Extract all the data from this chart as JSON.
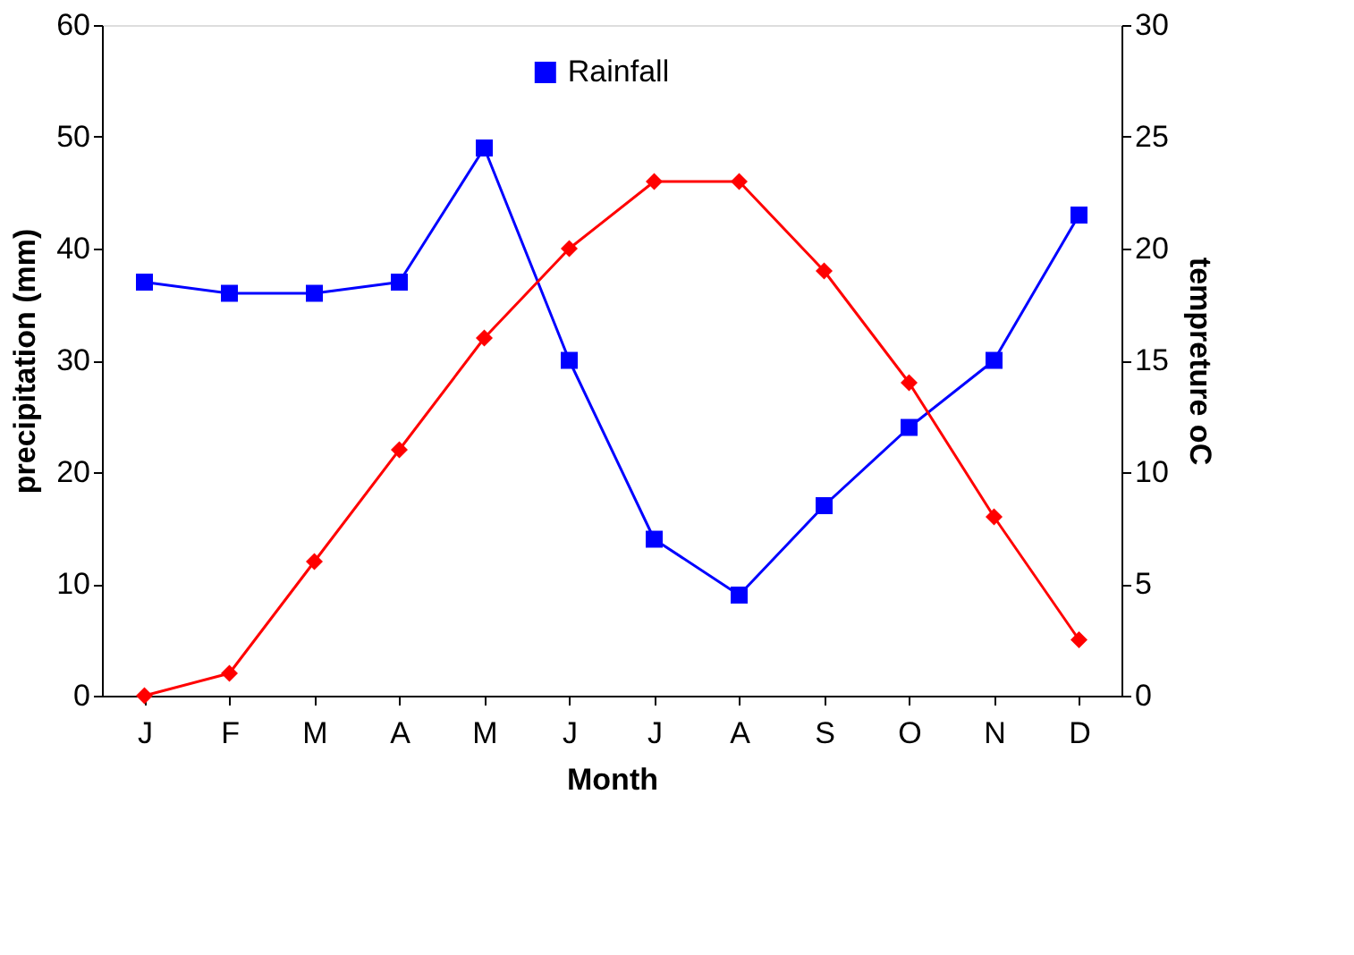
{
  "chart_data": {
    "type": "line",
    "xlabel": "Month",
    "ylabel": "precipitation (mm)",
    "y2label": "tempreture oC",
    "categories": [
      "J",
      "F",
      "M",
      "A",
      "M",
      "J",
      "J",
      "A",
      "S",
      "O",
      "N",
      "D"
    ],
    "series": [
      {
        "name": "Rainfall",
        "color": "#0000ff",
        "marker": "square",
        "values": [
          37,
          36,
          36,
          37,
          49,
          30,
          14,
          9,
          17,
          24,
          30,
          43
        ]
      },
      {
        "color": "#ff0000",
        "marker": "diamond",
        "axis": "y2",
        "values": [
          0,
          1,
          6,
          11,
          16,
          20,
          23,
          23,
          19,
          14,
          8,
          2.5
        ]
      }
    ],
    "ylim": [
      0,
      60
    ],
    "yticks": [
      0,
      10,
      20,
      30,
      40,
      50,
      60
    ],
    "y2lim": [
      0,
      30
    ],
    "y2ticks": [
      0,
      5,
      10,
      15,
      20,
      25,
      30
    ],
    "legend": "top",
    "grid": false,
    "line_style": "solid"
  }
}
